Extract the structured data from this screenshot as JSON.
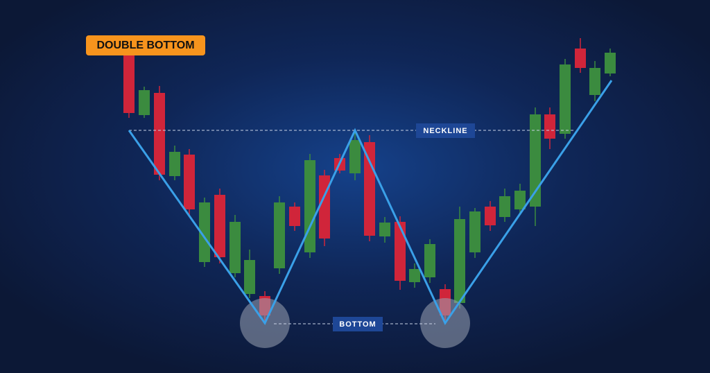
{
  "title": "DOUBLE BOTTOM",
  "neckline_label": "NECKLINE",
  "bottom_label": "BOTTOM"
}
